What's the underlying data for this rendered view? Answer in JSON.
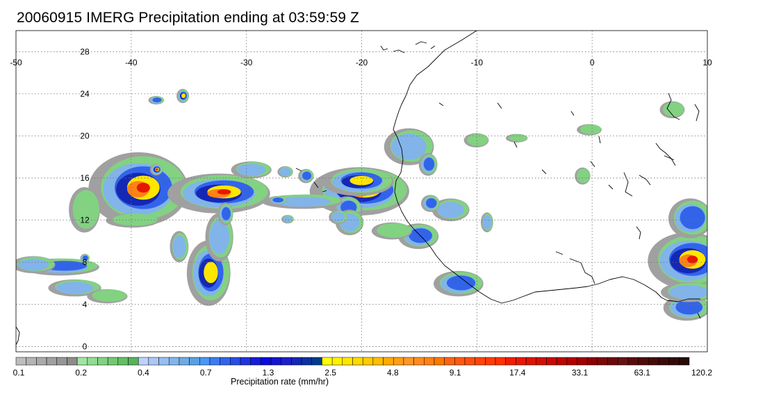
{
  "title": "20060915 IMERG Precipitation ending at 03:59:59 Z",
  "lon_labels": [
    -50,
    -40,
    -30,
    -20,
    -10,
    0,
    10
  ],
  "lat_labels": [
    0,
    4,
    8,
    12,
    16,
    20,
    24,
    28
  ],
  "extent": {
    "lon": [
      -50,
      10
    ],
    "lat": [
      -0.5,
      30
    ]
  },
  "colorbar": {
    "label": "Precipitation rate (mm/hr)",
    "tick_labels": [
      "0.1",
      "0.2",
      "0.4",
      "0.7",
      "1.3",
      "2.5",
      "4.8",
      "9.1",
      "17.4",
      "33.1",
      "63.1",
      "120.2"
    ],
    "colors": [
      "#bebebe",
      "#b4b4b4",
      "#aaaaaa",
      "#a0a0a0",
      "#969696",
      "#8c8c8c",
      "#a0e6a0",
      "#91dc91",
      "#82d282",
      "#73c873",
      "#64be64",
      "#55b455",
      "#bed2fa",
      "#aac8f5",
      "#96beef",
      "#82b4ea",
      "#6eaae5",
      "#5aa0e0",
      "#4a96f5",
      "#3c7cf0",
      "#3264ea",
      "#284ce5",
      "#1e34e0",
      "#141cda",
      "#0a0adc",
      "#1414d2",
      "#1e1ec8",
      "#1428b4",
      "#0a32a0",
      "#003c8c",
      "#ffff00",
      "#fff200",
      "#ffe600",
      "#ffd900",
      "#ffcc00",
      "#ffbf00",
      "#ffaa00",
      "#ff9f14",
      "#ff9628",
      "#ff8c1e",
      "#ff8214",
      "#ff7800",
      "#ff6414",
      "#ff5a10",
      "#ff500c",
      "#ff4608",
      "#ff3c04",
      "#ff3200",
      "#f01e00",
      "#e61900",
      "#dc1400",
      "#d20f00",
      "#c80a00",
      "#be0500",
      "#b40000",
      "#a00000",
      "#8c0000",
      "#780a0a",
      "#6e0a0a",
      "#641414",
      "#5a0a0a",
      "#500a0a",
      "#460a0a",
      "#3c0a0a",
      "#320a0a",
      "#280a0a"
    ]
  },
  "storms": [
    {
      "lon": -39.2,
      "lat": 15.0,
      "rx": 3.2,
      "ry": 2.6,
      "peak": 4
    },
    {
      "lon": -32.2,
      "lat": 14.6,
      "rx": 3.3,
      "ry": 1.4,
      "peak": 4
    },
    {
      "lon": -20.0,
      "lat": 14.8,
      "rx": 3.2,
      "ry": 1.7,
      "peak": 4
    },
    {
      "lon": -33.2,
      "lat": 7.0,
      "rx": 1.4,
      "ry": 2.3,
      "peak": 3
    },
    {
      "lon": -46.0,
      "lat": 7.6,
      "rx": 2.5,
      "ry": 0.6,
      "peak": 2
    },
    {
      "lon": 8.5,
      "lat": 8.2,
      "rx": 2.6,
      "ry": 2.0,
      "peak": 4
    },
    {
      "lon": 8.6,
      "lat": 12.2,
      "rx": 1.4,
      "ry": 1.4,
      "peak": 2
    },
    {
      "lon": -11.5,
      "lat": 6.0,
      "rx": 1.6,
      "ry": 0.9,
      "peak": 2
    },
    {
      "lon": -15.0,
      "lat": 10.5,
      "rx": 1.3,
      "ry": 0.9,
      "peak": 2
    },
    {
      "lon": -15.8,
      "lat": 19.0,
      "rx": 1.6,
      "ry": 1.3,
      "peak": 1
    },
    {
      "lon": -12.2,
      "lat": 13.0,
      "rx": 1.2,
      "ry": 0.8,
      "peak": 1
    },
    {
      "lon": -21.2,
      "lat": 13.2,
      "rx": 0.9,
      "ry": 0.8,
      "peak": 2
    },
    {
      "lon": 8.3,
      "lat": 3.7,
      "rx": 1.5,
      "ry": 0.9,
      "peak": 2
    },
    {
      "lon": -37.8,
      "lat": 16.8,
      "rx": 0.4,
      "ry": 0.4,
      "peak": 4
    },
    {
      "lon": -35.5,
      "lat": 23.8,
      "rx": 0.4,
      "ry": 0.5,
      "peak": 3
    },
    {
      "lon": -37.8,
      "lat": 23.4,
      "rx": 0.5,
      "ry": 0.3,
      "peak": 2
    },
    {
      "lon": -29.5,
      "lat": 16.8,
      "rx": 1.3,
      "ry": 0.6,
      "peak": 1
    },
    {
      "lon": -25.0,
      "lat": 13.8,
      "rx": 2.6,
      "ry": 0.5,
      "peak": 1
    },
    {
      "lon": -24.8,
      "lat": 16.2,
      "rx": 0.5,
      "ry": 0.5,
      "peak": 2
    },
    {
      "lon": -26.6,
      "lat": 16.6,
      "rx": 0.5,
      "ry": 0.4,
      "peak": 1
    },
    {
      "lon": -32.3,
      "lat": 10.4,
      "rx": 0.9,
      "ry": 1.7,
      "peak": 1
    },
    {
      "lon": -44.8,
      "lat": 5.6,
      "rx": 1.7,
      "ry": 0.6,
      "peak": 1
    },
    {
      "lon": -48.4,
      "lat": 7.8,
      "rx": 1.4,
      "ry": 0.6,
      "peak": 1
    },
    {
      "lon": -44.0,
      "lat": 13.0,
      "rx": 1.0,
      "ry": 1.6,
      "peak": 0
    },
    {
      "lon": -39.8,
      "lat": 12.0,
      "rx": 1.7,
      "ry": 0.5,
      "peak": 0
    },
    {
      "lon": -21.0,
      "lat": 11.8,
      "rx": 0.9,
      "ry": 0.9,
      "peak": 1
    },
    {
      "lon": -17.3,
      "lat": 11.0,
      "rx": 1.3,
      "ry": 0.6,
      "peak": 0
    },
    {
      "lon": -9.1,
      "lat": 11.8,
      "rx": 0.4,
      "ry": 0.7,
      "peak": 1
    },
    {
      "lon": -14.0,
      "lat": 13.6,
      "rx": 0.6,
      "ry": 0.6,
      "peak": 2
    },
    {
      "lon": -20.2,
      "lat": 15.7,
      "rx": 2.3,
      "ry": 1.0,
      "peak": 3
    },
    {
      "lon": -10.0,
      "lat": 19.6,
      "rx": 0.8,
      "ry": 0.5,
      "peak": 0
    },
    {
      "lon": -6.5,
      "lat": 19.8,
      "rx": 0.7,
      "ry": 0.3,
      "peak": 0
    },
    {
      "lon": -0.2,
      "lat": 20.6,
      "rx": 0.8,
      "ry": 0.4,
      "peak": 0
    },
    {
      "lon": 7.0,
      "lat": 22.5,
      "rx": 0.8,
      "ry": 0.6,
      "peak": 0
    },
    {
      "lon": 8.5,
      "lat": 5.2,
      "rx": 1.8,
      "ry": 0.7,
      "peak": 1
    },
    {
      "lon": -42.0,
      "lat": 4.8,
      "rx": 1.3,
      "ry": 0.5,
      "peak": 0
    },
    {
      "lon": -31.8,
      "lat": 12.6,
      "rx": 0.5,
      "ry": 0.8,
      "peak": 2
    },
    {
      "lon": -35.8,
      "lat": 9.5,
      "rx": 0.6,
      "ry": 1.1,
      "peak": 1
    },
    {
      "lon": -22.0,
      "lat": 12.3,
      "rx": 0.6,
      "ry": 0.5,
      "peak": 1
    },
    {
      "lon": -26.4,
      "lat": 12.1,
      "rx": 0.4,
      "ry": 0.3,
      "peak": 1
    },
    {
      "lon": -0.8,
      "lat": 16.2,
      "rx": 0.5,
      "ry": 0.6,
      "peak": 0
    },
    {
      "lon": -44.0,
      "lat": 8.4,
      "rx": 0.3,
      "ry": 0.3,
      "peak": 2
    },
    {
      "lon": -14.2,
      "lat": 17.3,
      "rx": 0.6,
      "ry": 0.8,
      "peak": 2
    },
    {
      "lon": -27.3,
      "lat": 13.9,
      "rx": 0.6,
      "ry": 0.3,
      "peak": 2
    }
  ]
}
